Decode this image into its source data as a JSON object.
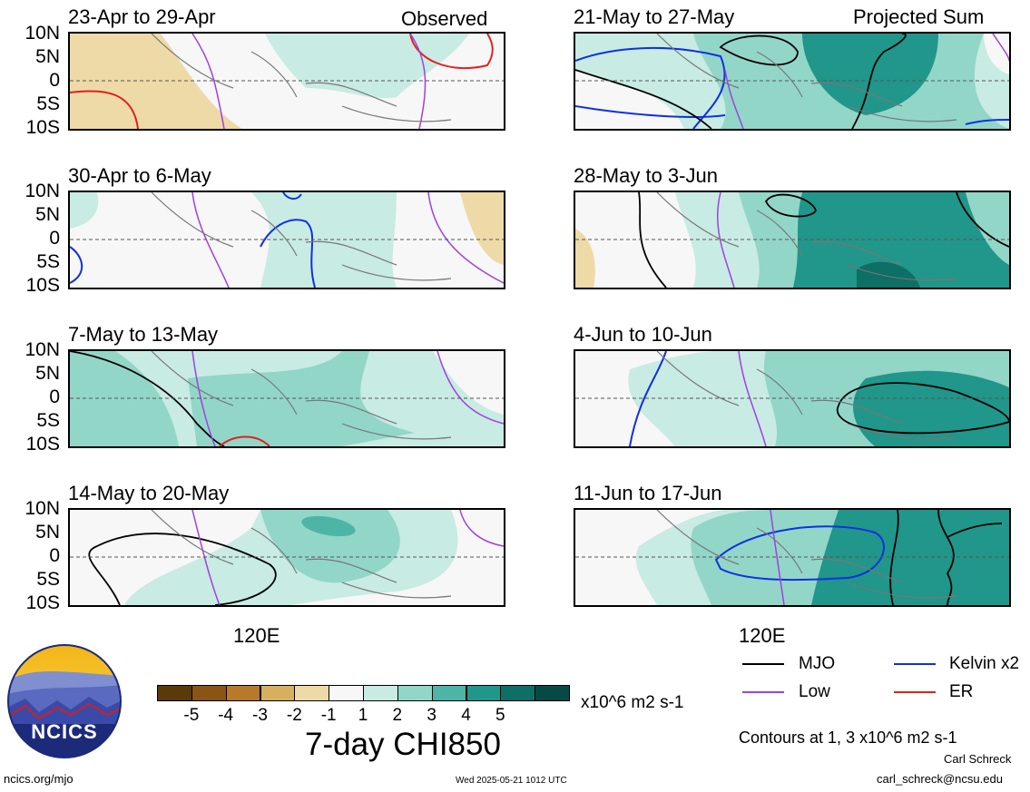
{
  "panels": [
    {
      "title": "23-Apr to 29-Apr",
      "tag": "Observed"
    },
    {
      "title": "30-Apr to 6-May",
      "tag": ""
    },
    {
      "title": "7-May to 13-May",
      "tag": ""
    },
    {
      "title": "14-May to 20-May",
      "tag": ""
    },
    {
      "title": "21-May to 27-May",
      "tag": "Projected Sum"
    },
    {
      "title": "28-May to 3-Jun",
      "tag": ""
    },
    {
      "title": "4-Jun to 10-Jun",
      "tag": ""
    },
    {
      "title": "11-Jun to 17-Jun",
      "tag": ""
    }
  ],
  "lat_labels": [
    "10N",
    "5N",
    "0",
    "5S",
    "10S"
  ],
  "lon_label": "120E",
  "colorbar": {
    "colors": [
      "#5a3a08",
      "#8a5414",
      "#b67a2a",
      "#d6b060",
      "#eedaa6",
      "#f7f7f7",
      "#c8ebe4",
      "#92d6c8",
      "#4eb5a6",
      "#21968a",
      "#0d6f66",
      "#064a44"
    ],
    "labels": [
      "-5",
      "-4",
      "-3",
      "-2",
      "-1",
      "1",
      "2",
      "3",
      "4",
      "5"
    ],
    "units": "x10^6 m2 s-1",
    "title": "7-day CHI850"
  },
  "legend": [
    {
      "name": "MJO",
      "color": "#000000"
    },
    {
      "name": "Kelvin x2",
      "color": "#1030e0"
    },
    {
      "name": "Low",
      "color": "#a040e0"
    },
    {
      "name": "ER",
      "color": "#e02020"
    }
  ],
  "contour_note": "Contours at 1, 3 x10^6 m2 s-1",
  "logo_text": "NCICS",
  "footer": {
    "site": "ncics.org/mjo",
    "timestamp": "Wed 2025-05-21 1012 UTC",
    "author": "Carl Schreck",
    "email": "carl_schreck@ncsu.edu"
  }
}
